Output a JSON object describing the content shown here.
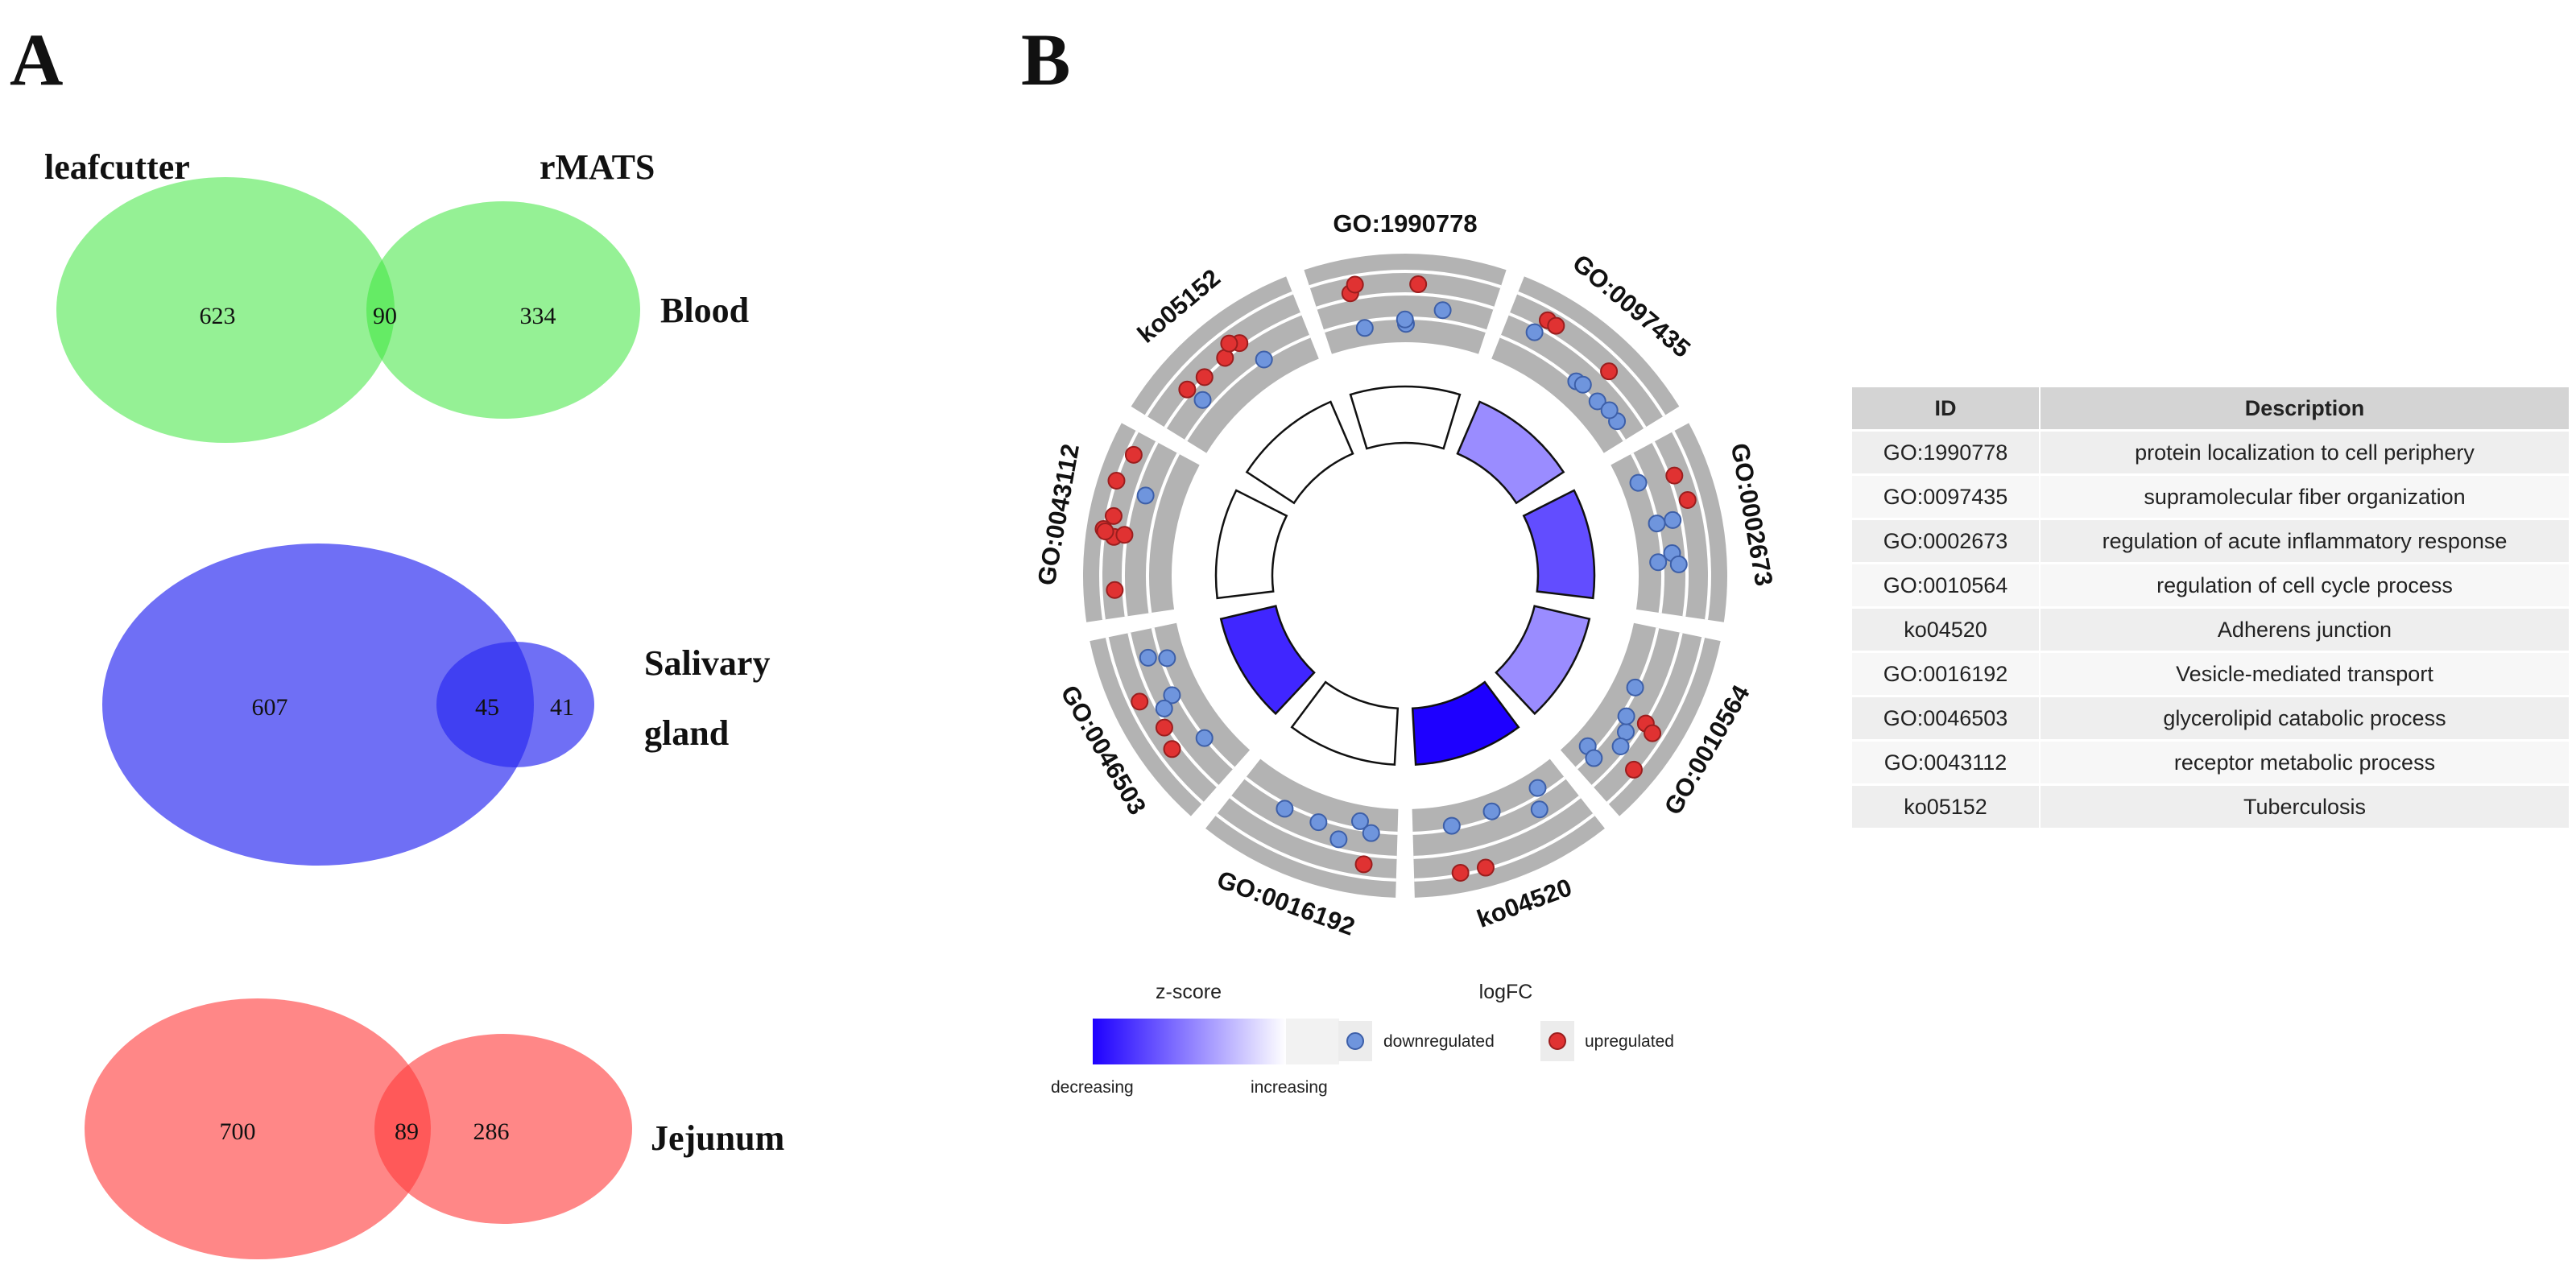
{
  "panel_a": {
    "letter": "A",
    "method_left": "leafcutter",
    "method_right": "rMATS",
    "venns": [
      {
        "tissue": "Blood",
        "left_only": "623",
        "overlap": "90",
        "right_only": "334"
      },
      {
        "tissue_line1": "Salivary",
        "tissue_line2": "gland",
        "left_only": "607",
        "overlap": "45",
        "right_only": "41"
      },
      {
        "tissue": "Jejunum",
        "left_only": "700",
        "overlap": "89",
        "right_only": "286"
      }
    ]
  },
  "panel_b": {
    "letter": "B",
    "colors": {
      "ring_gray": "#b3b3b3",
      "down": "#6f95dd",
      "up": "#e03232",
      "z_low": "#1e00ff",
      "z_high": "#ffffff"
    },
    "terms": [
      {
        "id": "GO:1990778",
        "zscore_level": 0.0
      },
      {
        "id": "GO:0097435",
        "zscore_level": 0.45
      },
      {
        "id": "GO:0002673",
        "zscore_level": 0.7
      },
      {
        "id": "GO:0010564",
        "zscore_level": 0.45
      },
      {
        "id": "ko04520",
        "zscore_level": 1.0
      },
      {
        "id": "GO:0016192",
        "zscore_level": 0.0
      },
      {
        "id": "GO:0046503",
        "zscore_level": 0.85
      },
      {
        "id": "GO:0043112",
        "zscore_level": 0.0
      },
      {
        "id": "ko05152",
        "zscore_level": 0.0
      }
    ],
    "legend": {
      "zscore_title": "z-score",
      "zscore_low": "decreasing",
      "zscore_high": "increasing",
      "logfc_title": "logFC",
      "down_label": "downregulated",
      "up_label": "upregulated"
    },
    "table": {
      "headers": [
        "ID",
        "Description"
      ],
      "rows": [
        [
          "GO:1990778",
          "protein localization to cell periphery"
        ],
        [
          "GO:0097435",
          "supramolecular fiber organization"
        ],
        [
          "GO:0002673",
          "regulation of acute inflammatory response"
        ],
        [
          "GO:0010564",
          "regulation of cell cycle process"
        ],
        [
          "ko04520",
          "Adherens junction"
        ],
        [
          "GO:0016192",
          "Vesicle-mediated transport"
        ],
        [
          "GO:0046503",
          "glycerolipid catabolic process"
        ],
        [
          "GO:0043112",
          "receptor metabolic process"
        ],
        [
          "ko05152",
          "Tuberculosis"
        ]
      ]
    }
  }
}
